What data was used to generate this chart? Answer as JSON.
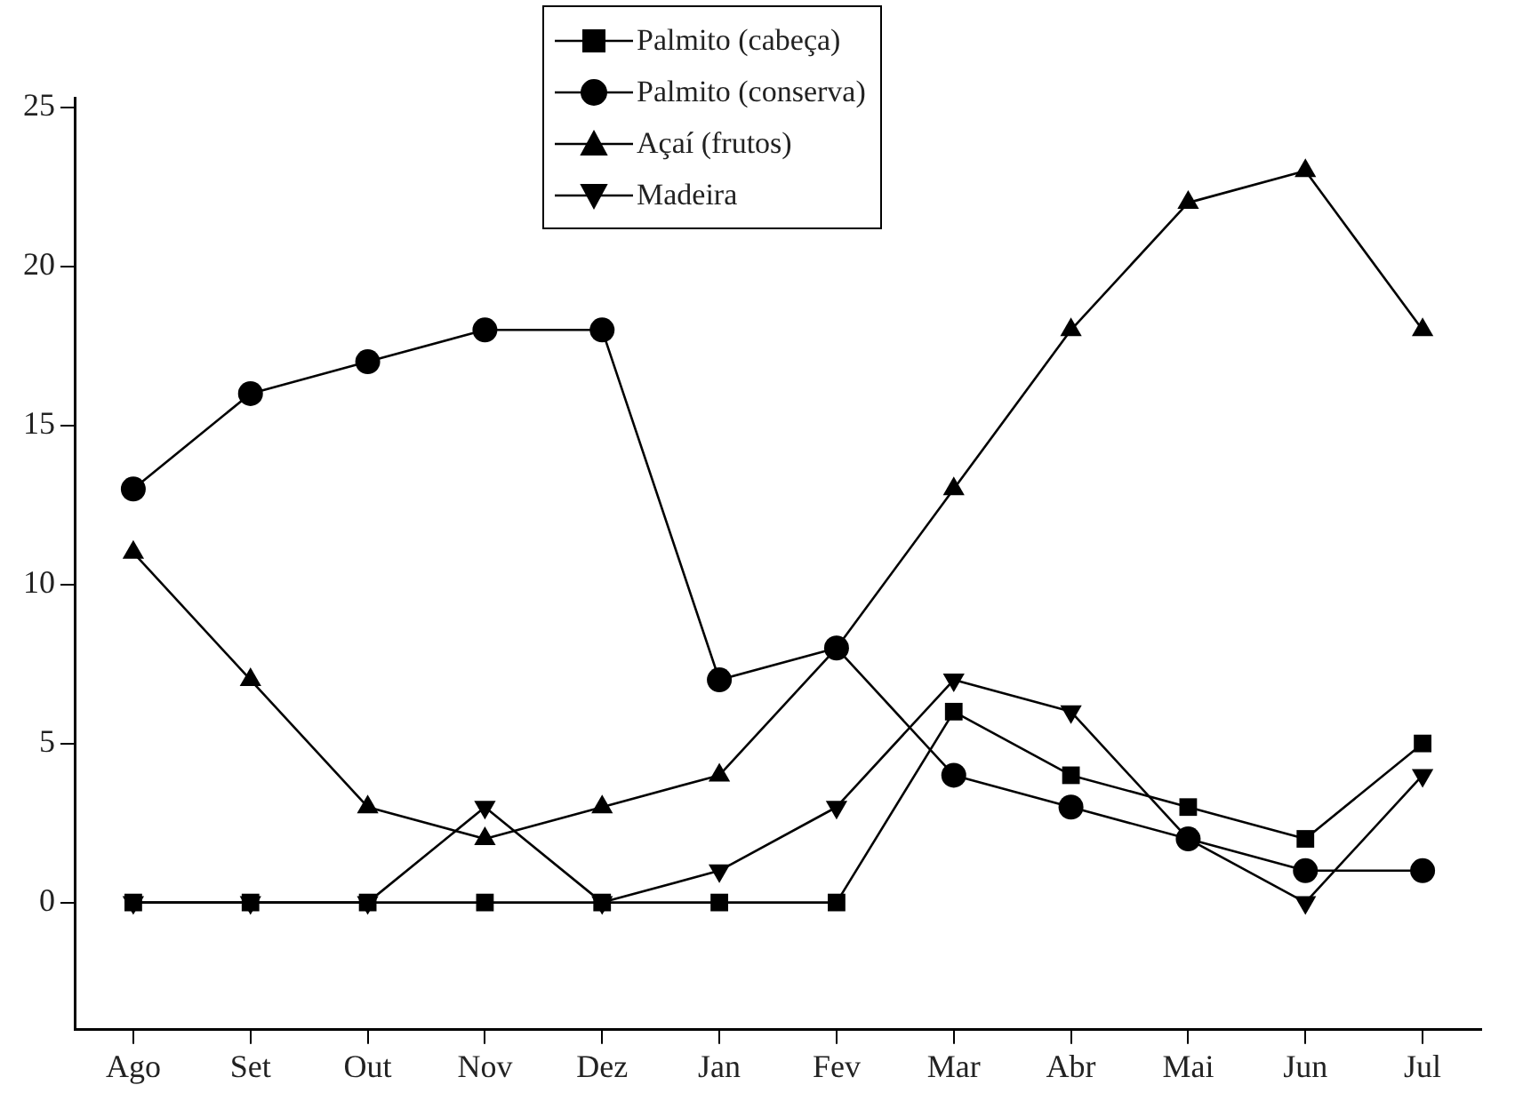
{
  "chart_data": {
    "type": "line",
    "categories": [
      "Ago",
      "Set",
      "Out",
      "Nov",
      "Dez",
      "Jan",
      "Fev",
      "Mar",
      "Abr",
      "Mai",
      "Jun",
      "Jul"
    ],
    "ylim": [
      -4,
      25.3
    ],
    "yticks": [
      0,
      5,
      10,
      15,
      20,
      25
    ],
    "grid": false,
    "legend": "top",
    "line_style": "solid",
    "series": [
      {
        "name": "Palmito (cabeça)",
        "color": "#000000",
        "marker": "square",
        "values": [
          0,
          0,
          0,
          0,
          0,
          0,
          0,
          6,
          4,
          3,
          2,
          5
        ]
      },
      {
        "name": "Palmito (conserva)",
        "color": "#000000",
        "marker": "circle",
        "values": [
          13,
          16,
          17,
          18,
          18,
          7,
          8,
          4,
          3,
          2,
          1,
          1
        ]
      },
      {
        "name": "Açaí (frutos)",
        "color": "#000000",
        "marker": "triangle",
        "values": [
          11,
          7,
          3,
          2,
          3,
          4,
          8,
          13,
          18,
          22,
          23,
          18
        ]
      },
      {
        "name": "Madeira",
        "color": "#000000",
        "marker": "triangle_down",
        "values": [
          0,
          0,
          0,
          3,
          0,
          1,
          3,
          7,
          6,
          2,
          0,
          4
        ]
      }
    ]
  }
}
